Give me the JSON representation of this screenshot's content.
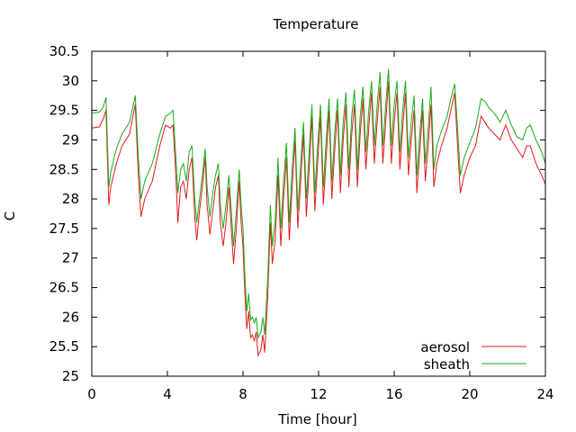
{
  "chart_data": {
    "type": "line",
    "title": "Temperature",
    "xlabel": "Time [hour]",
    "ylabel": "C",
    "xlim": [
      0,
      24
    ],
    "ylim": [
      25,
      30.5
    ],
    "xticks": [
      0,
      4,
      8,
      12,
      16,
      20,
      24
    ],
    "xtick_labels": [
      "0",
      "4",
      "8",
      "12",
      "16",
      "20",
      "24"
    ],
    "yticks": [
      25,
      25.5,
      26,
      26.5,
      27,
      27.5,
      28,
      28.5,
      29,
      29.5,
      30,
      30.5
    ],
    "ytick_labels": [
      "25",
      "25.5",
      "26",
      "26.5",
      "27",
      "27.5",
      "28",
      "28.5",
      "29",
      "29.5",
      "30",
      "30.5"
    ],
    "grid": false,
    "legend_position": "bottom-right",
    "series": [
      {
        "name": "aerosol",
        "color": "#e41a1c",
        "points": [
          [
            0,
            29.2
          ],
          [
            0.4,
            29.22
          ],
          [
            0.6,
            29.35
          ],
          [
            0.75,
            29.5
          ],
          [
            0.9,
            27.9
          ],
          [
            1.0,
            28.2
          ],
          [
            1.3,
            28.6
          ],
          [
            1.6,
            28.9
          ],
          [
            2.0,
            29.1
          ],
          [
            2.3,
            29.6
          ],
          [
            2.45,
            28.5
          ],
          [
            2.6,
            27.7
          ],
          [
            2.8,
            28.0
          ],
          [
            3.2,
            28.3
          ],
          [
            3.6,
            28.9
          ],
          [
            3.9,
            29.25
          ],
          [
            4.15,
            29.2
          ],
          [
            4.3,
            29.25
          ],
          [
            4.45,
            28.4
          ],
          [
            4.55,
            27.6
          ],
          [
            4.7,
            28.2
          ],
          [
            4.85,
            28.3
          ],
          [
            5.0,
            28.0
          ],
          [
            5.15,
            28.5
          ],
          [
            5.3,
            28.7
          ],
          [
            5.45,
            27.7
          ],
          [
            5.55,
            27.3
          ],
          [
            5.7,
            27.8
          ],
          [
            5.85,
            28.2
          ],
          [
            6.0,
            28.7
          ],
          [
            6.1,
            27.9
          ],
          [
            6.25,
            27.4
          ],
          [
            6.4,
            27.8
          ],
          [
            6.55,
            28.2
          ],
          [
            6.7,
            28.4
          ],
          [
            6.8,
            27.6
          ],
          [
            6.95,
            27.2
          ],
          [
            7.1,
            27.6
          ],
          [
            7.25,
            28.2
          ],
          [
            7.4,
            27.4
          ],
          [
            7.5,
            26.9
          ],
          [
            7.65,
            27.5
          ],
          [
            7.8,
            28.3
          ],
          [
            7.9,
            27.6
          ],
          [
            8.0,
            27.2
          ],
          [
            8.1,
            26.4
          ],
          [
            8.2,
            25.8
          ],
          [
            8.3,
            26.1
          ],
          [
            8.4,
            25.65
          ],
          [
            8.5,
            25.7
          ],
          [
            8.6,
            25.6
          ],
          [
            8.7,
            25.75
          ],
          [
            8.8,
            25.35
          ],
          [
            8.95,
            25.45
          ],
          [
            9.05,
            25.7
          ],
          [
            9.15,
            25.4
          ],
          [
            9.3,
            26.3
          ],
          [
            9.45,
            27.6
          ],
          [
            9.55,
            26.9
          ],
          [
            9.7,
            27.3
          ],
          [
            9.85,
            28.4
          ],
          [
            10.0,
            27.2
          ],
          [
            10.15,
            28.0
          ],
          [
            10.3,
            28.7
          ],
          [
            10.45,
            27.3
          ],
          [
            10.6,
            28.2
          ],
          [
            10.75,
            29.0
          ],
          [
            10.9,
            27.5
          ],
          [
            11.05,
            28.3
          ],
          [
            11.2,
            29.1
          ],
          [
            11.35,
            27.7
          ],
          [
            11.5,
            28.5
          ],
          [
            11.65,
            29.4
          ],
          [
            11.8,
            27.8
          ],
          [
            11.95,
            28.6
          ],
          [
            12.1,
            29.4
          ],
          [
            12.25,
            27.9
          ],
          [
            12.4,
            28.7
          ],
          [
            12.55,
            29.5
          ],
          [
            12.7,
            28.0
          ],
          [
            12.85,
            28.8
          ],
          [
            13.0,
            29.5
          ],
          [
            13.15,
            28.1
          ],
          [
            13.3,
            29.0
          ],
          [
            13.45,
            29.6
          ],
          [
            13.6,
            28.2
          ],
          [
            13.75,
            29.1
          ],
          [
            13.9,
            29.6
          ],
          [
            14.05,
            28.2
          ],
          [
            14.2,
            29.1
          ],
          [
            14.35,
            29.7
          ],
          [
            14.5,
            28.5
          ],
          [
            14.65,
            29.2
          ],
          [
            14.8,
            29.8
          ],
          [
            14.95,
            28.6
          ],
          [
            15.1,
            29.3
          ],
          [
            15.25,
            29.9
          ],
          [
            15.4,
            28.6
          ],
          [
            15.55,
            29.3
          ],
          [
            15.7,
            30.0
          ],
          [
            15.85,
            28.6
          ],
          [
            16.0,
            29.3
          ],
          [
            16.15,
            29.8
          ],
          [
            16.3,
            28.5
          ],
          [
            16.45,
            29.2
          ],
          [
            16.6,
            29.8
          ],
          [
            16.75,
            28.4
          ],
          [
            16.9,
            29.0
          ],
          [
            17.05,
            29.5
          ],
          [
            17.2,
            28.1
          ],
          [
            17.35,
            28.8
          ],
          [
            17.5,
            29.5
          ],
          [
            17.65,
            28.3
          ],
          [
            17.8,
            28.9
          ],
          [
            17.95,
            29.6
          ],
          [
            18.1,
            28.2
          ],
          [
            18.25,
            28.6
          ],
          [
            18.5,
            28.9
          ],
          [
            18.8,
            29.2
          ],
          [
            19.0,
            29.5
          ],
          [
            19.2,
            29.8
          ],
          [
            19.35,
            28.9
          ],
          [
            19.5,
            28.1
          ],
          [
            19.7,
            28.4
          ],
          [
            20.0,
            28.7
          ],
          [
            20.3,
            28.9
          ],
          [
            20.6,
            29.4
          ],
          [
            20.8,
            29.3
          ],
          [
            21.0,
            29.2
          ],
          [
            21.3,
            29.1
          ],
          [
            21.6,
            29.0
          ],
          [
            21.9,
            29.25
          ],
          [
            22.2,
            29.0
          ],
          [
            22.5,
            28.85
          ],
          [
            22.8,
            28.7
          ],
          [
            23.0,
            28.9
          ],
          [
            23.2,
            28.9
          ],
          [
            23.5,
            28.6
          ],
          [
            23.8,
            28.4
          ],
          [
            24.0,
            28.25
          ]
        ]
      },
      {
        "name": "sheath",
        "color": "#1aaa1a",
        "points": [
          [
            0,
            29.45
          ],
          [
            0.4,
            29.47
          ],
          [
            0.6,
            29.55
          ],
          [
            0.75,
            29.72
          ],
          [
            0.9,
            28.2
          ],
          [
            1.0,
            28.45
          ],
          [
            1.3,
            28.85
          ],
          [
            1.6,
            29.1
          ],
          [
            2.0,
            29.3
          ],
          [
            2.3,
            29.75
          ],
          [
            2.45,
            28.8
          ],
          [
            2.6,
            28.0
          ],
          [
            2.8,
            28.3
          ],
          [
            3.2,
            28.6
          ],
          [
            3.6,
            29.1
          ],
          [
            3.9,
            29.4
          ],
          [
            4.15,
            29.45
          ],
          [
            4.3,
            29.5
          ],
          [
            4.45,
            28.7
          ],
          [
            4.55,
            28.1
          ],
          [
            4.7,
            28.5
          ],
          [
            4.85,
            28.6
          ],
          [
            5.0,
            28.3
          ],
          [
            5.15,
            28.8
          ],
          [
            5.3,
            28.9
          ],
          [
            5.45,
            28.0
          ],
          [
            5.55,
            27.6
          ],
          [
            5.7,
            28.0
          ],
          [
            5.85,
            28.4
          ],
          [
            6.0,
            28.85
          ],
          [
            6.1,
            28.2
          ],
          [
            6.25,
            27.7
          ],
          [
            6.4,
            28.1
          ],
          [
            6.55,
            28.4
          ],
          [
            6.7,
            28.6
          ],
          [
            6.8,
            27.9
          ],
          [
            6.95,
            27.5
          ],
          [
            7.1,
            27.9
          ],
          [
            7.25,
            28.4
          ],
          [
            7.4,
            27.7
          ],
          [
            7.5,
            27.2
          ],
          [
            7.65,
            27.8
          ],
          [
            7.8,
            28.5
          ],
          [
            7.9,
            27.9
          ],
          [
            8.0,
            27.5
          ],
          [
            8.1,
            26.7
          ],
          [
            8.2,
            26.1
          ],
          [
            8.3,
            26.4
          ],
          [
            8.4,
            25.95
          ],
          [
            8.5,
            26.0
          ],
          [
            8.6,
            25.9
          ],
          [
            8.7,
            26.0
          ],
          [
            8.8,
            25.65
          ],
          [
            8.95,
            25.75
          ],
          [
            9.05,
            26.0
          ],
          [
            9.15,
            25.7
          ],
          [
            9.3,
            26.6
          ],
          [
            9.45,
            27.9
          ],
          [
            9.55,
            27.2
          ],
          [
            9.7,
            27.6
          ],
          [
            9.85,
            28.7
          ],
          [
            10.0,
            27.5
          ],
          [
            10.15,
            28.3
          ],
          [
            10.3,
            28.95
          ],
          [
            10.45,
            27.6
          ],
          [
            10.6,
            28.5
          ],
          [
            10.75,
            29.2
          ],
          [
            10.9,
            27.8
          ],
          [
            11.05,
            28.6
          ],
          [
            11.2,
            29.3
          ],
          [
            11.35,
            28.0
          ],
          [
            11.5,
            28.8
          ],
          [
            11.65,
            29.6
          ],
          [
            11.8,
            28.1
          ],
          [
            11.95,
            28.9
          ],
          [
            12.1,
            29.6
          ],
          [
            12.25,
            28.2
          ],
          [
            12.4,
            29.0
          ],
          [
            12.55,
            29.7
          ],
          [
            12.7,
            28.3
          ],
          [
            12.85,
            29.1
          ],
          [
            13.0,
            29.7
          ],
          [
            13.15,
            28.4
          ],
          [
            13.3,
            29.3
          ],
          [
            13.45,
            29.8
          ],
          [
            13.6,
            28.5
          ],
          [
            13.75,
            29.4
          ],
          [
            13.9,
            29.85
          ],
          [
            14.05,
            28.5
          ],
          [
            14.2,
            29.4
          ],
          [
            14.35,
            29.9
          ],
          [
            14.5,
            28.8
          ],
          [
            14.65,
            29.5
          ],
          [
            14.8,
            30.0
          ],
          [
            14.95,
            28.9
          ],
          [
            15.1,
            29.6
          ],
          [
            15.25,
            30.15
          ],
          [
            15.4,
            28.9
          ],
          [
            15.55,
            29.6
          ],
          [
            15.7,
            30.2
          ],
          [
            15.85,
            28.9
          ],
          [
            16.0,
            29.6
          ],
          [
            16.15,
            30.0
          ],
          [
            16.3,
            28.8
          ],
          [
            16.45,
            29.5
          ],
          [
            16.6,
            30.0
          ],
          [
            16.75,
            28.7
          ],
          [
            16.9,
            29.3
          ],
          [
            17.05,
            29.75
          ],
          [
            17.2,
            28.4
          ],
          [
            17.35,
            29.1
          ],
          [
            17.5,
            29.7
          ],
          [
            17.65,
            28.6
          ],
          [
            17.8,
            29.2
          ],
          [
            17.95,
            29.9
          ],
          [
            18.1,
            28.5
          ],
          [
            18.25,
            28.9
          ],
          [
            18.5,
            29.15
          ],
          [
            18.8,
            29.4
          ],
          [
            19.0,
            29.7
          ],
          [
            19.2,
            29.95
          ],
          [
            19.35,
            29.2
          ],
          [
            19.5,
            28.4
          ],
          [
            19.7,
            28.7
          ],
          [
            20.0,
            28.95
          ],
          [
            20.3,
            29.2
          ],
          [
            20.6,
            29.7
          ],
          [
            20.8,
            29.65
          ],
          [
            21.0,
            29.55
          ],
          [
            21.3,
            29.45
          ],
          [
            21.6,
            29.3
          ],
          [
            21.9,
            29.5
          ],
          [
            22.2,
            29.25
          ],
          [
            22.5,
            29.05
          ],
          [
            22.8,
            29.0
          ],
          [
            23.0,
            29.2
          ],
          [
            23.2,
            29.25
          ],
          [
            23.5,
            29.0
          ],
          [
            23.8,
            28.8
          ],
          [
            24.0,
            28.6
          ]
        ]
      }
    ]
  }
}
